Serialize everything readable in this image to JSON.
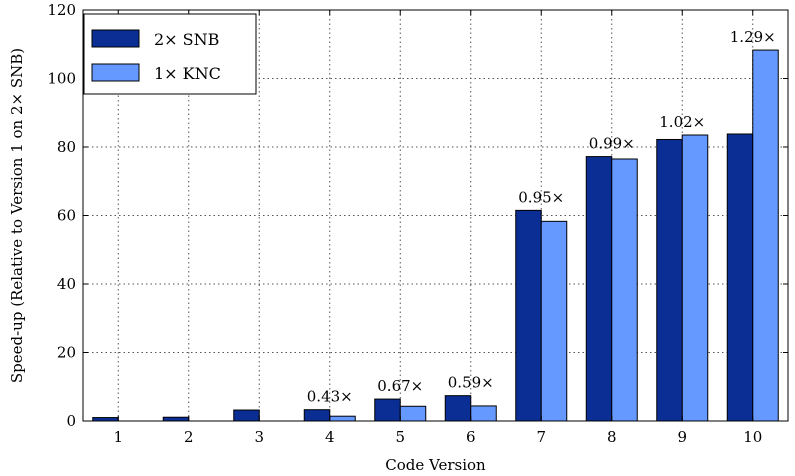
{
  "chart_data": {
    "type": "bar",
    "xlabel": "Code Version",
    "ylabel": "Speed-up (Relative to Version 1 on 2× SNB)",
    "categories": [
      "1",
      "2",
      "3",
      "4",
      "5",
      "6",
      "7",
      "8",
      "9",
      "10"
    ],
    "ylim": [
      0,
      120
    ],
    "yticks": [
      "0",
      "20",
      "40",
      "60",
      "80",
      "100",
      "120"
    ],
    "grid": true,
    "legend_position": "top-left",
    "series": [
      {
        "name": "2× SNB",
        "color": "#0b2e95",
        "values": [
          1.0,
          1.1,
          3.2,
          3.3,
          6.4,
          7.4,
          61.5,
          77.2,
          82.2,
          83.8
        ]
      },
      {
        "name": "1× KNC",
        "color": "#6699ff",
        "values": [
          0,
          0,
          0,
          1.4,
          4.3,
          4.4,
          58.3,
          76.5,
          83.5,
          108.3
        ]
      }
    ],
    "annotations": [
      "",
      "",
      "",
      "0.43×",
      "0.67×",
      "0.59×",
      "0.95×",
      "0.99×",
      "1.02×",
      "1.29×"
    ]
  }
}
